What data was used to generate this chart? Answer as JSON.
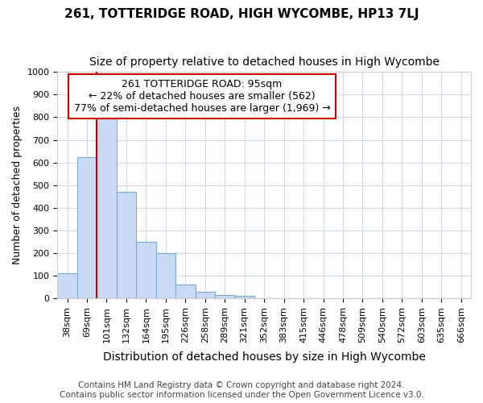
{
  "title": "261, TOTTERIDGE ROAD, HIGH WYCOMBE, HP13 7LJ",
  "subtitle": "Size of property relative to detached houses in High Wycombe",
  "xlabel": "Distribution of detached houses by size in High Wycombe",
  "ylabel": "Number of detached properties",
  "bar_values": [
    110,
    625,
    795,
    470,
    250,
    200,
    60,
    30,
    15,
    10,
    0,
    0,
    0,
    0,
    0,
    0,
    0,
    0,
    0,
    0,
    0
  ],
  "bar_labels": [
    "38sqm",
    "69sqm",
    "101sqm",
    "132sqm",
    "164sqm",
    "195sqm",
    "226sqm",
    "258sqm",
    "289sqm",
    "321sqm",
    "352sqm",
    "383sqm",
    "415sqm",
    "446sqm",
    "478sqm",
    "509sqm",
    "540sqm",
    "572sqm",
    "603sqm",
    "635sqm",
    "666sqm"
  ],
  "bar_color": "#c8daf5",
  "bar_edge_color": "#7aaad4",
  "vline_x_index": 2,
  "vline_color": "#cc0000",
  "annotation_text": "261 TOTTERIDGE ROAD: 95sqm\n← 22% of detached houses are smaller (562)\n77% of semi-detached houses are larger (1,969) →",
  "annotation_box_color": "#ffffff",
  "annotation_box_edge": "#cc0000",
  "ylim": [
    0,
    1000
  ],
  "yticks": [
    0,
    100,
    200,
    300,
    400,
    500,
    600,
    700,
    800,
    900,
    1000
  ],
  "footer_line1": "Contains HM Land Registry data © Crown copyright and database right 2024.",
  "footer_line2": "Contains public sector information licensed under the Open Government Licence v3.0.",
  "bg_color": "#ffffff",
  "grid_color": "#d0d8e8",
  "title_fontsize": 11,
  "subtitle_fontsize": 10,
  "xlabel_fontsize": 10,
  "ylabel_fontsize": 9,
  "tick_fontsize": 8,
  "footer_fontsize": 7.5,
  "annotation_fontsize": 9
}
